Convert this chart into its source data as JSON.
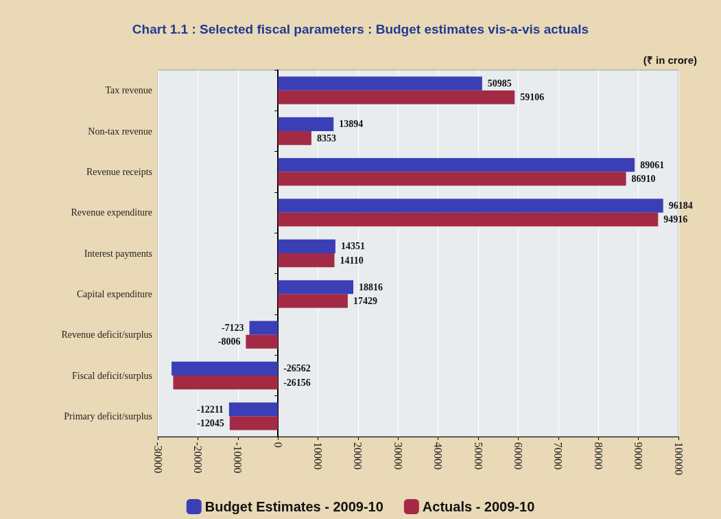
{
  "chart_data": {
    "type": "bar",
    "orientation": "horizontal",
    "title": "Chart 1.1 : Selected fiscal parameters : Budget estimates vis-a-vis actuals",
    "annotations": [
      "(₹ in crore)"
    ],
    "categories": [
      "Tax revenue",
      "Non-tax revenue",
      "Revenue receipts",
      "Revenue expenditure",
      "Interest payments",
      "Capital expenditure",
      "Revenue deficit/surplus",
      "Fiscal deficit/surplus",
      "Primary deficit/surplus"
    ],
    "series": [
      {
        "name": "Budget Estimates - 2009-10",
        "color": "#3b3fb5",
        "values": [
          50985,
          13894,
          89061,
          96184,
          14351,
          18816,
          -7123,
          -26562,
          -12211
        ]
      },
      {
        "name": "Actuals - 2009-10",
        "color": "#a32a45",
        "values": [
          59106,
          8353,
          86910,
          94916,
          14110,
          17429,
          -8006,
          -26156,
          -12045
        ]
      }
    ],
    "xlim": [
      -30000,
      100000
    ],
    "xticks": [
      -30000,
      -20000,
      -10000,
      0,
      10000,
      20000,
      30000,
      40000,
      50000,
      60000,
      70000,
      80000,
      90000,
      100000
    ],
    "data_labels": true,
    "grid": "x",
    "legend": "bottom"
  }
}
